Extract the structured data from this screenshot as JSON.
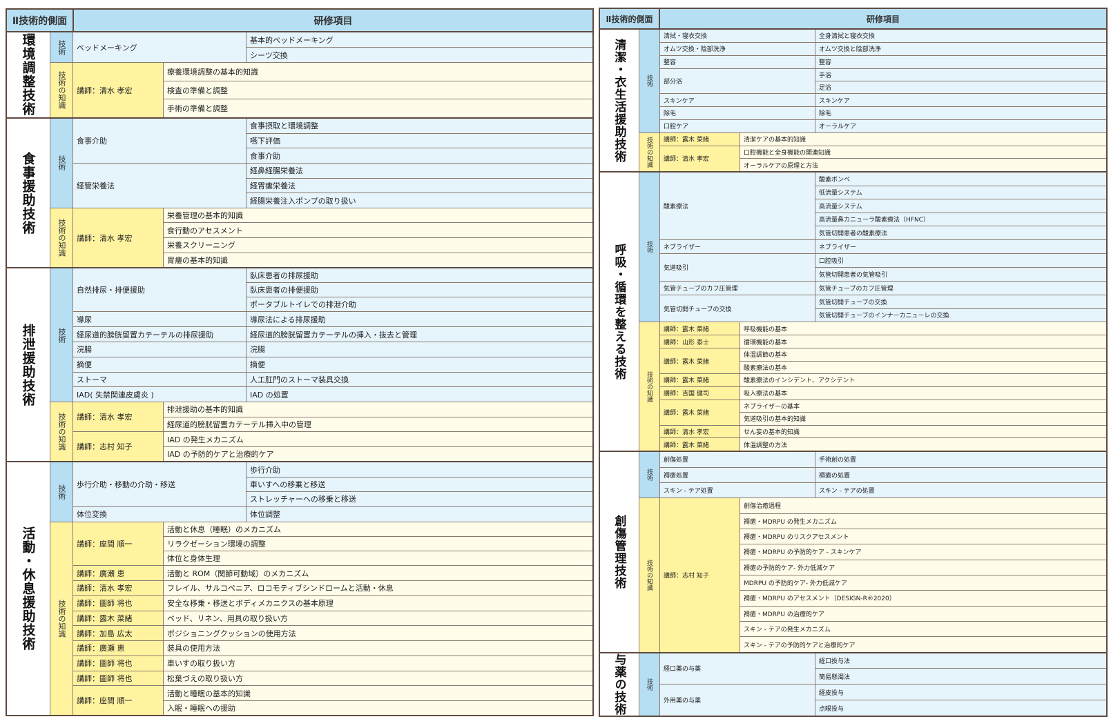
{
  "header": {
    "col1": "Ⅱ技術的側面",
    "col2": "研修項目"
  },
  "left_sections": [
    {
      "title": "環境調整技術",
      "flex": 121,
      "groups": [
        {
          "kind": "tech",
          "label": "技術",
          "flex": 42,
          "rows": [
            {
              "left": "ベッドメーキング",
              "items": [
                "基本的ベッドメーキング",
                "シーツ交換"
              ]
            }
          ]
        },
        {
          "kind": "know",
          "label": "技術の知識",
          "flex": 76,
          "rows": [
            {
              "left": "講師：清水 孝宏",
              "items": [
                "療養環境調整の基本的知識",
                "検査の準備と調整",
                "手術の準備と調整"
              ]
            }
          ]
        }
      ]
    },
    {
      "title": "食事援助技術",
      "flex": 212,
      "groups": [
        {
          "kind": "tech",
          "label": "技術",
          "flex": 127,
          "rows": [
            {
              "left": "食事介助",
              "items": [
                "食事摂取と環境調整",
                "嚥下評価",
                "食事介助"
              ]
            },
            {
              "left": "経管栄養法",
              "items": [
                "経鼻経腸栄養法",
                "経胃瘻栄養法",
                "経腸栄養注入ポンプの取り扱い"
              ]
            }
          ]
        },
        {
          "kind": "know",
          "label": "技術の知識",
          "flex": 84,
          "rows": [
            {
              "left": "講師：清水 孝宏",
              "items": [
                "栄養管理の基本的知識",
                "食行動のアセスメント",
                "栄養スクリーニング",
                "胃瘻の基本的知識"
              ]
            }
          ]
        }
      ]
    },
    {
      "title": "排泄援助技術",
      "flex": 275,
      "groups": [
        {
          "kind": "tech",
          "label": "技術",
          "flex": 190,
          "rows": [
            {
              "left": "自然排尿・排便援助",
              "items": [
                "臥床患者の排尿援助",
                "臥床患者の排便援助",
                "ポータブルトイレでの排泄介助"
              ]
            },
            {
              "left": "導尿",
              "items": [
                "導尿法による排尿援助"
              ]
            },
            {
              "left": "経尿道的膀胱留置カテーテルの排尿援助",
              "items": [
                "経尿道的膀胱留置カテーテルの挿入・抜去と管理"
              ]
            },
            {
              "left": "浣腸",
              "items": [
                "浣腸"
              ]
            },
            {
              "left": "摘便",
              "items": [
                "摘便"
              ]
            },
            {
              "left": "ストーマ",
              "items": [
                "人工肛門のストーマ装具交換"
              ]
            },
            {
              "left": "IAD( 失禁関連皮膚炎 )",
              "items": [
                "IAD の処置"
              ]
            }
          ]
        },
        {
          "kind": "know",
          "label": "技術の知識",
          "flex": 84,
          "rows": [
            {
              "left": "講師：清水 孝宏",
              "items": [
                "排泄援助の基本的知識",
                "経尿道的膀胱留置カテーテル挿入中の管理"
              ]
            },
            {
              "left": "講師：志村 知子",
              "items": [
                "IAD の発生メカニズム",
                "IAD の予防的ケアと治療的ケア"
              ]
            }
          ]
        }
      ]
    },
    {
      "title": "活動・休息援助技術",
      "flex": 360,
      "groups": [
        {
          "kind": "tech",
          "label": "技術",
          "flex": 84,
          "rows": [
            {
              "left": "歩行介助・移動の介助・移送",
              "items": [
                "歩行介助",
                "車いすへの移乗と移送",
                "ストレッチャーへの移乗と移送"
              ]
            },
            {
              "left": "体位変換",
              "items": [
                "体位調整"
              ]
            }
          ]
        },
        {
          "kind": "know",
          "label": "技術の知識",
          "flex": 275,
          "rows": [
            {
              "left": "講師：座間 順一",
              "items": [
                "活動と休息（睡眠）のメカニズム",
                "リラクゼーション環境の調整",
                "体位と身体生理"
              ]
            },
            {
              "left": "講師：廣瀬 恵",
              "items": [
                "活動と ROM（関節可動域）のメカニズム"
              ]
            },
            {
              "left": "講師：清水 孝宏",
              "items": [
                "フレイル、サルコペニア、ロコモティブシンドロームと活動・休息"
              ]
            },
            {
              "left": "講師：圖師 将也",
              "items": [
                "安全な移乗・移送とボディメカニクスの基本原理"
              ]
            },
            {
              "left": "講師：露木 菜緒",
              "items": [
                "ベッド、リネン、用具の取り扱い方"
              ]
            },
            {
              "left": "講師：加島 広太",
              "items": [
                "ポジショニングクッションの使用方法"
              ]
            },
            {
              "left": "講師：廣瀬 恵",
              "items": [
                "装具の使用方法"
              ]
            },
            {
              "left": "講師：圖師 将也",
              "items": [
                "車いすの取り扱い方"
              ]
            },
            {
              "left": "講師：圖師 将也",
              "items": [
                "松葉づえの取り扱い方"
              ]
            },
            {
              "left": "講師：座間 順一",
              "items": [
                "活動と睡眠の基本的知識",
                "入眠・睡眠への援助"
              ]
            }
          ]
        }
      ]
    }
  ],
  "right_sections": [
    {
      "title": "清潔・衣生活援助技術",
      "flex": 202,
      "groups": [
        {
          "kind": "tech",
          "label": "技術",
          "flex": 145,
          "rows": [
            {
              "left": "清拭・寝衣交換",
              "items": [
                "全身清拭と寝衣交換"
              ]
            },
            {
              "left": "オムツ交換・陰部洗浄",
              "items": [
                "オムツ交換と陰部洗浄"
              ]
            },
            {
              "left": "整容",
              "items": [
                "整容"
              ]
            },
            {
              "left": "部分浴",
              "items": [
                "手浴",
                "足浴"
              ]
            },
            {
              "left": "スキンケア",
              "items": [
                "スキンケア"
              ]
            },
            {
              "left": "除毛",
              "items": [
                "除毛"
              ]
            },
            {
              "left": "口腔ケア",
              "items": [
                "オーラルケア"
              ]
            }
          ]
        },
        {
          "kind": "know",
          "label": "技術の知識",
          "flex": 54,
          "rows": [
            {
              "left": "講師：露木 菜緒",
              "items": [
                "清潔ケアの基本的知識"
              ]
            },
            {
              "left": "講師：清水 孝宏",
              "items": [
                "口腔機能と全身機能の関連知識",
                "オーラルケアの原理と方法"
              ]
            }
          ]
        }
      ]
    },
    {
      "title": "呼吸・循環を整える技術",
      "flex": 397,
      "groups": [
        {
          "kind": "tech",
          "label": "技術",
          "flex": 213,
          "rows": [
            {
              "left": "酸素療法",
              "items": [
                "酸素ボンベ",
                "低流量システム",
                "高流量システム",
                "高流量鼻カニューラ酸素療法（HFNC）",
                "気管切開患者の酸素療法"
              ]
            },
            {
              "left": "ネブライザー",
              "items": [
                "ネブライザー"
              ]
            },
            {
              "left": "気道吸引",
              "items": [
                "口腔吸引",
                "気管切開患者の気管吸引"
              ]
            },
            {
              "left": "気管チューブのカフ圧管理",
              "items": [
                "気管チューブのカフ圧管理"
              ]
            },
            {
              "left": "気管切開チューブの交換",
              "items": [
                "気管切開チューブの交換",
                "気管切開チューブのインナーカニューレの交換"
              ]
            }
          ]
        },
        {
          "kind": "know",
          "label": "技術の知識",
          "flex": 183,
          "rows": [
            {
              "left": "講師：露木 菜緒",
              "items": [
                "呼吸機能の基本"
              ]
            },
            {
              "left": "講師：山形 泰士",
              "items": [
                "循環機能の基本"
              ]
            },
            {
              "left": "講師：露木 菜緒",
              "items": [
                "体温調節の基本",
                "酸素療法の基本"
              ]
            },
            {
              "left": "講師：露木 菜緒",
              "items": [
                "酸素療法のインシデント、アクシデント"
              ]
            },
            {
              "left": "講師：吉国 健司",
              "items": [
                "吸入療法の基本"
              ]
            },
            {
              "left": "講師：露木 菜緒",
              "items": [
                "ネブライザーの基本",
                "気道吸引の基本的知識"
              ]
            },
            {
              "left": "講師：清水 孝宏",
              "items": [
                "せん妄の基本的知識"
              ]
            },
            {
              "left": "講師：露木 菜緒",
              "items": [
                "体温調整の方法"
              ]
            }
          ]
        }
      ]
    },
    {
      "title": "創傷管理技術",
      "flex": 285,
      "groups": [
        {
          "kind": "tech",
          "label": "技術",
          "flex": 65,
          "rows": [
            {
              "left": "創傷処置",
              "items": [
                "手術創の処置"
              ]
            },
            {
              "left": "褥瘡処置",
              "items": [
                "褥瘡の処置"
              ]
            },
            {
              "left": "スキン - テア処置",
              "items": [
                "スキン - テアの処置"
              ]
            }
          ]
        },
        {
          "kind": "know",
          "label": "技術の知識",
          "flex": 219,
          "rows": [
            {
              "left": "講師：志村 知子",
              "items": [
                "創傷治癒過程",
                "褥瘡・MDRPU の発生メカニズム",
                "褥瘡・MDRPU のリスクアセスメント",
                "褥瘡・MDRPU の予防的ケア - スキンケア",
                "褥瘡の予防的ケア- 外力低減ケア",
                "MDRPU の予防的ケア- 外力低減ケア",
                "褥瘡・MDRPU のアセスメント（DESIGN-R®2020）",
                "褥瘡・MDRPU の治療的ケア",
                "スキン - テアの発生メカニズム",
                "スキン - テアの予防的ケアと治療的ケア"
              ]
            }
          ]
        }
      ]
    },
    {
      "title": "与薬の技術",
      "flex": 89,
      "groups": [
        {
          "kind": "tech",
          "label": "技術",
          "flex": 89,
          "rows": [
            {
              "left": "経口薬の与薬",
              "items": [
                "経口投与法",
                "簡易懸濁法"
              ]
            },
            {
              "left": "外用薬の与薬",
              "items": [
                "経皮投与",
                "点眼投与"
              ]
            }
          ]
        }
      ]
    }
  ]
}
